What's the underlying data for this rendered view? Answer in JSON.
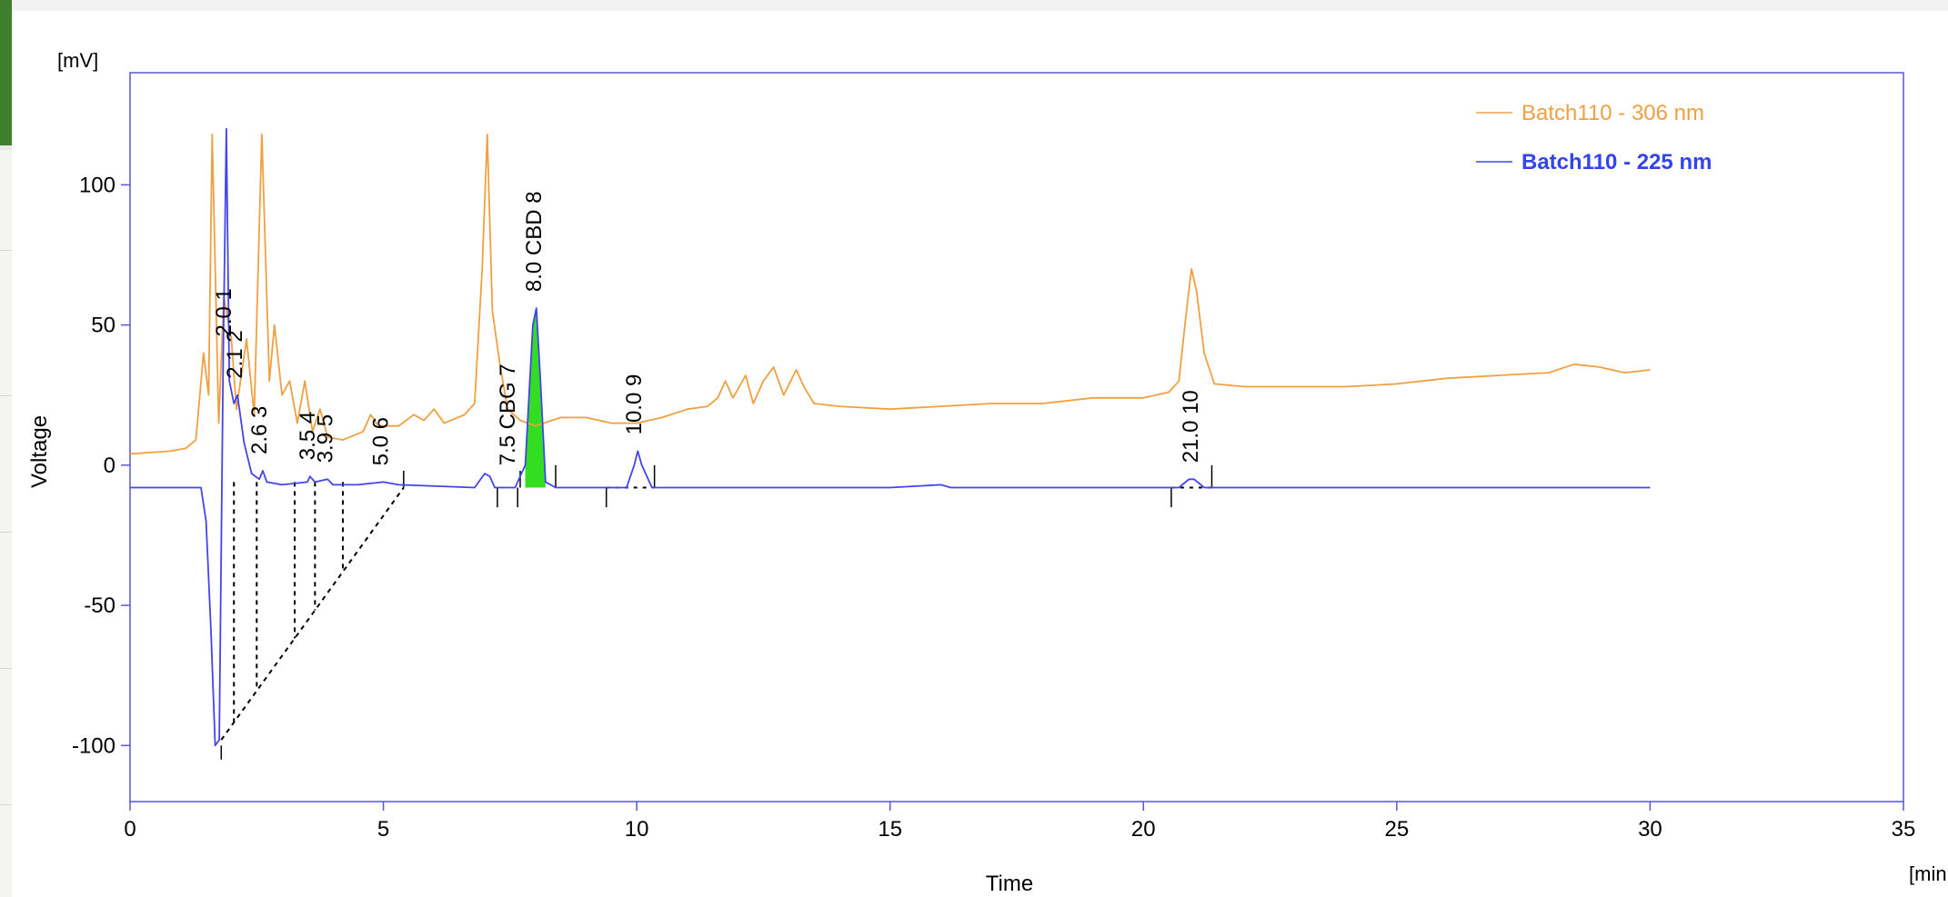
{
  "chart_data": {
    "type": "line",
    "xlabel": "Time",
    "x_unit": "[min.]",
    "ylabel": "Voltage",
    "y_unit": "[mV]",
    "xlim": [
      0,
      35
    ],
    "ylim": [
      -120,
      140
    ],
    "x_ticks": [
      "0",
      "5",
      "10",
      "15",
      "20",
      "25",
      "30",
      "35"
    ],
    "y_ticks": [
      "100",
      "50",
      "0",
      "-50",
      "-100"
    ],
    "grid": false,
    "legend_position": "top-right",
    "series": [
      {
        "name": "Batch110 - 306 nm",
        "color": "#f0a040",
        "points": [
          [
            0,
            4
          ],
          [
            0.8,
            5
          ],
          [
            1.1,
            6
          ],
          [
            1.3,
            9
          ],
          [
            1.45,
            40
          ],
          [
            1.55,
            25
          ],
          [
            1.62,
            118
          ],
          [
            1.75,
            15
          ],
          [
            1.85,
            60
          ],
          [
            2.0,
            45
          ],
          [
            2.1,
            20
          ],
          [
            2.3,
            45
          ],
          [
            2.45,
            18
          ],
          [
            2.6,
            118
          ],
          [
            2.75,
            30
          ],
          [
            2.85,
            50
          ],
          [
            3.0,
            25
          ],
          [
            3.15,
            30
          ],
          [
            3.3,
            15
          ],
          [
            3.45,
            30
          ],
          [
            3.6,
            12
          ],
          [
            3.75,
            20
          ],
          [
            3.9,
            10
          ],
          [
            4.2,
            9
          ],
          [
            4.6,
            12
          ],
          [
            4.75,
            18
          ],
          [
            4.9,
            14
          ],
          [
            5.3,
            14
          ],
          [
            5.6,
            18
          ],
          [
            5.8,
            16
          ],
          [
            6.0,
            20
          ],
          [
            6.2,
            15
          ],
          [
            6.6,
            18
          ],
          [
            6.8,
            22
          ],
          [
            6.95,
            70
          ],
          [
            7.05,
            118
          ],
          [
            7.15,
            55
          ],
          [
            7.3,
            36
          ],
          [
            7.45,
            20
          ],
          [
            7.7,
            16
          ],
          [
            8.0,
            14
          ],
          [
            8.5,
            17
          ],
          [
            9.0,
            17
          ],
          [
            9.5,
            15
          ],
          [
            10.0,
            15
          ],
          [
            10.5,
            17
          ],
          [
            11.0,
            20
          ],
          [
            11.4,
            21
          ],
          [
            11.6,
            24
          ],
          [
            11.75,
            30
          ],
          [
            11.9,
            24
          ],
          [
            12.15,
            32
          ],
          [
            12.3,
            22
          ],
          [
            12.5,
            30
          ],
          [
            12.7,
            35
          ],
          [
            12.9,
            25
          ],
          [
            13.15,
            34
          ],
          [
            13.3,
            28
          ],
          [
            13.5,
            22
          ],
          [
            14.0,
            21
          ],
          [
            15.0,
            20
          ],
          [
            16.0,
            21
          ],
          [
            17.0,
            22
          ],
          [
            18.0,
            22
          ],
          [
            19.0,
            24
          ],
          [
            20.0,
            24
          ],
          [
            20.5,
            26
          ],
          [
            20.7,
            30
          ],
          [
            20.85,
            55
          ],
          [
            20.95,
            70
          ],
          [
            21.05,
            62
          ],
          [
            21.2,
            40
          ],
          [
            21.4,
            29
          ],
          [
            22.0,
            28
          ],
          [
            23.0,
            28
          ],
          [
            24.0,
            28
          ],
          [
            25.0,
            29
          ],
          [
            26.0,
            31
          ],
          [
            27.0,
            32
          ],
          [
            28.0,
            33
          ],
          [
            28.5,
            36
          ],
          [
            29.0,
            35
          ],
          [
            29.5,
            33
          ],
          [
            30.0,
            34
          ]
        ]
      },
      {
        "name": "Batch110 - 225 nm",
        "color": "#4444ee",
        "points": [
          [
            0,
            -8
          ],
          [
            1.4,
            -8
          ],
          [
            1.5,
            -20
          ],
          [
            1.6,
            -60
          ],
          [
            1.68,
            -100
          ],
          [
            1.76,
            -98
          ],
          [
            1.84,
            40
          ],
          [
            1.9,
            120
          ],
          [
            1.96,
            30
          ],
          [
            2.05,
            22
          ],
          [
            2.12,
            25
          ],
          [
            2.25,
            8
          ],
          [
            2.4,
            -3
          ],
          [
            2.55,
            -5
          ],
          [
            2.62,
            -2
          ],
          [
            2.7,
            -6
          ],
          [
            3.0,
            -7
          ],
          [
            3.5,
            -6
          ],
          [
            3.55,
            -4
          ],
          [
            3.65,
            -6
          ],
          [
            3.9,
            -5
          ],
          [
            4.0,
            -7
          ],
          [
            4.5,
            -7
          ],
          [
            5.0,
            -6
          ],
          [
            5.3,
            -7
          ],
          [
            6.8,
            -8
          ],
          [
            7.0,
            -3
          ],
          [
            7.1,
            -4
          ],
          [
            7.2,
            -8
          ],
          [
            7.6,
            -8
          ],
          [
            7.8,
            0
          ],
          [
            7.95,
            50
          ],
          [
            8.02,
            56
          ],
          [
            8.1,
            30
          ],
          [
            8.2,
            -6
          ],
          [
            8.4,
            -8
          ],
          [
            9.8,
            -8
          ],
          [
            9.95,
            0
          ],
          [
            10.02,
            5
          ],
          [
            10.1,
            0
          ],
          [
            10.3,
            -8
          ],
          [
            15.0,
            -8
          ],
          [
            16.0,
            -7
          ],
          [
            16.2,
            -8
          ],
          [
            20.7,
            -8
          ],
          [
            20.9,
            -5
          ],
          [
            21.0,
            -5
          ],
          [
            21.2,
            -8
          ],
          [
            30.0,
            -8
          ]
        ]
      }
    ],
    "peaks": [
      {
        "id": "1",
        "rt": "2.0",
        "name": "",
        "x": 1.9,
        "y": 40
      },
      {
        "id": "2",
        "rt": "2.1",
        "name": "",
        "x": 2.12,
        "y": 25
      },
      {
        "id": "3",
        "rt": "2.6",
        "name": "",
        "x": 2.6,
        "y": -2
      },
      {
        "id": "4",
        "rt": "3.5",
        "name": "",
        "x": 3.55,
        "y": -4
      },
      {
        "id": "5",
        "rt": "3.9",
        "name": "",
        "x": 3.9,
        "y": -5
      },
      {
        "id": "6",
        "rt": "5.0",
        "name": "",
        "x": 5.0,
        "y": -6
      },
      {
        "id": "7",
        "rt": "7.5",
        "name": "CBG",
        "x": 7.5,
        "y": -6
      },
      {
        "id": "8",
        "rt": "8.0",
        "name": "CBD",
        "x": 8.02,
        "y": 56
      },
      {
        "id": "9",
        "rt": "10.0",
        "name": "",
        "x": 10.0,
        "y": 5
      },
      {
        "id": "10",
        "rt": "21.0",
        "name": "",
        "x": 20.98,
        "y": -5
      }
    ]
  }
}
